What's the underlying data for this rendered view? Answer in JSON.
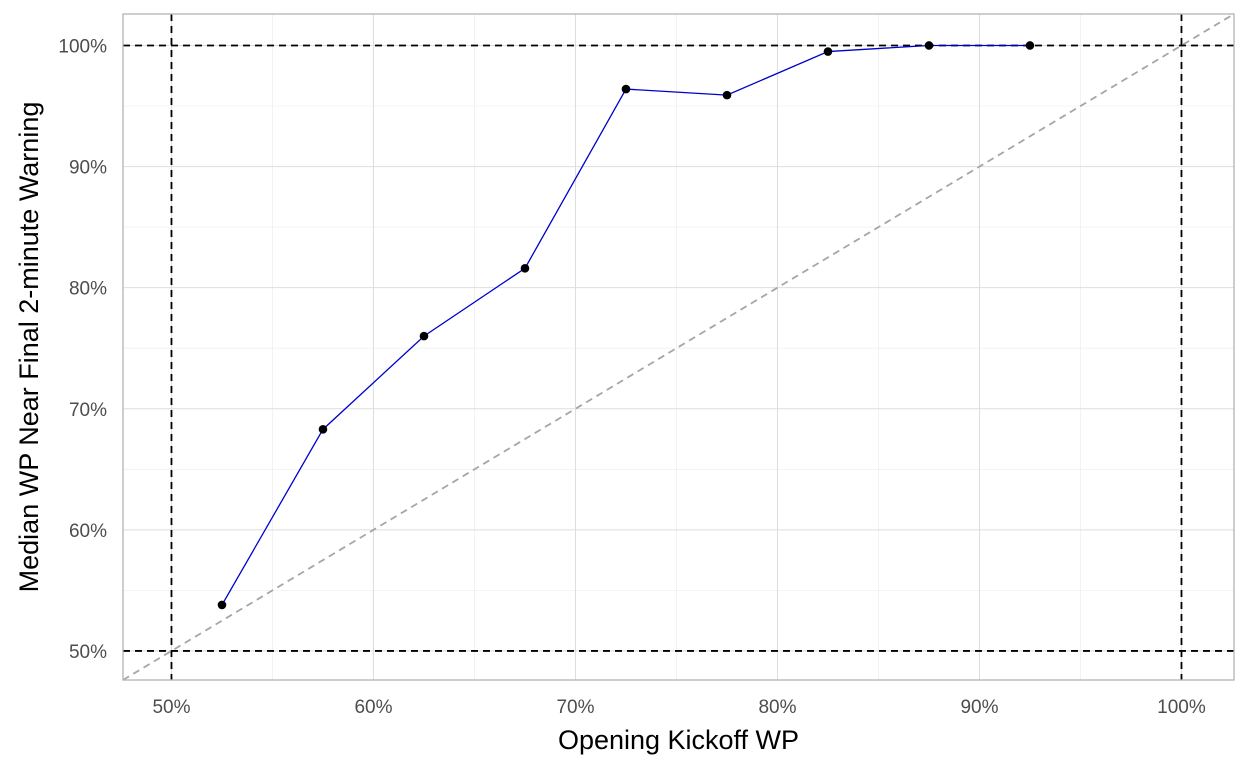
{
  "chart_data": {
    "type": "line",
    "xlabel": "Opening Kickoff WP",
    "ylabel": "Median WP Near Final 2-minute Warning",
    "xlim": [
      0.476,
      1.026
    ],
    "ylim": [
      0.476,
      1.026
    ],
    "x_ticks": [
      0.5,
      0.6,
      0.7,
      0.8,
      0.9,
      1.0
    ],
    "x_tick_labels": [
      "50%",
      "60%",
      "70%",
      "80%",
      "90%",
      "100%"
    ],
    "y_ticks": [
      0.5,
      0.6,
      0.7,
      0.8,
      0.9,
      1.0
    ],
    "y_tick_labels": [
      "50%",
      "60%",
      "70%",
      "80%",
      "90%",
      "100%"
    ],
    "grid": true,
    "series": [
      {
        "x": [
          0.525,
          0.575,
          0.625,
          0.675,
          0.725,
          0.775,
          0.825,
          0.875,
          0.925
        ],
        "y": [
          0.538,
          0.683,
          0.76,
          0.816,
          0.964,
          0.959,
          0.995,
          1.0,
          1.0
        ],
        "color": "#0000cd",
        "marker_color": "#000000"
      }
    ],
    "reference_lines": {
      "vertical": [
        0.5,
        1.0
      ],
      "horizontal": [
        0.5,
        1.0
      ],
      "diagonal": "y = x",
      "line_color": "#000000",
      "diagonal_color": "#a6a6a6"
    }
  }
}
